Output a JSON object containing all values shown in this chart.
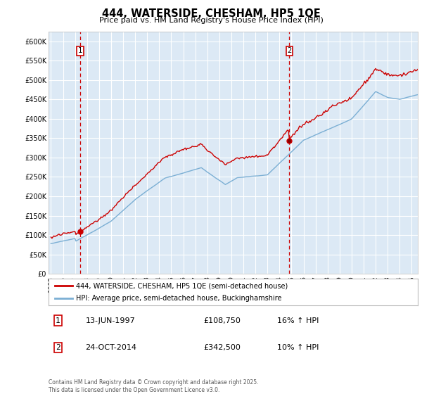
{
  "title": "444, WATERSIDE, CHESHAM, HP5 1QE",
  "subtitle": "Price paid vs. HM Land Registry's House Price Index (HPI)",
  "legend_line1": "444, WATERSIDE, CHESHAM, HP5 1QE (semi-detached house)",
  "legend_line2": "HPI: Average price, semi-detached house, Buckinghamshire",
  "annotation1": {
    "num": "1",
    "date": "13-JUN-1997",
    "price": "£108,750",
    "hpi": "16% ↑ HPI"
  },
  "annotation2": {
    "num": "2",
    "date": "24-OCT-2014",
    "price": "£342,500",
    "hpi": "10% ↑ HPI"
  },
  "footer": "Contains HM Land Registry data © Crown copyright and database right 2025.\nThis data is licensed under the Open Government Licence v3.0.",
  "ylim": [
    0,
    625000
  ],
  "ytick_values": [
    0,
    50000,
    100000,
    150000,
    200000,
    250000,
    300000,
    350000,
    400000,
    450000,
    500000,
    550000,
    600000
  ],
  "ytick_labels": [
    "£0",
    "£50K",
    "£100K",
    "£150K",
    "£200K",
    "£250K",
    "£300K",
    "£350K",
    "£400K",
    "£450K",
    "£500K",
    "£550K",
    "£600K"
  ],
  "plot_bg": "#dce9f5",
  "grid_color": "#ffffff",
  "red_line_color": "#cc0000",
  "blue_line_color": "#7bafd4",
  "vline_color": "#cc0000",
  "marker1_year": 1997.44,
  "marker1_y": 108750,
  "marker2_year": 2014.81,
  "marker2_y": 342500,
  "xlim_min": 1994.8,
  "xlim_max": 2025.5
}
